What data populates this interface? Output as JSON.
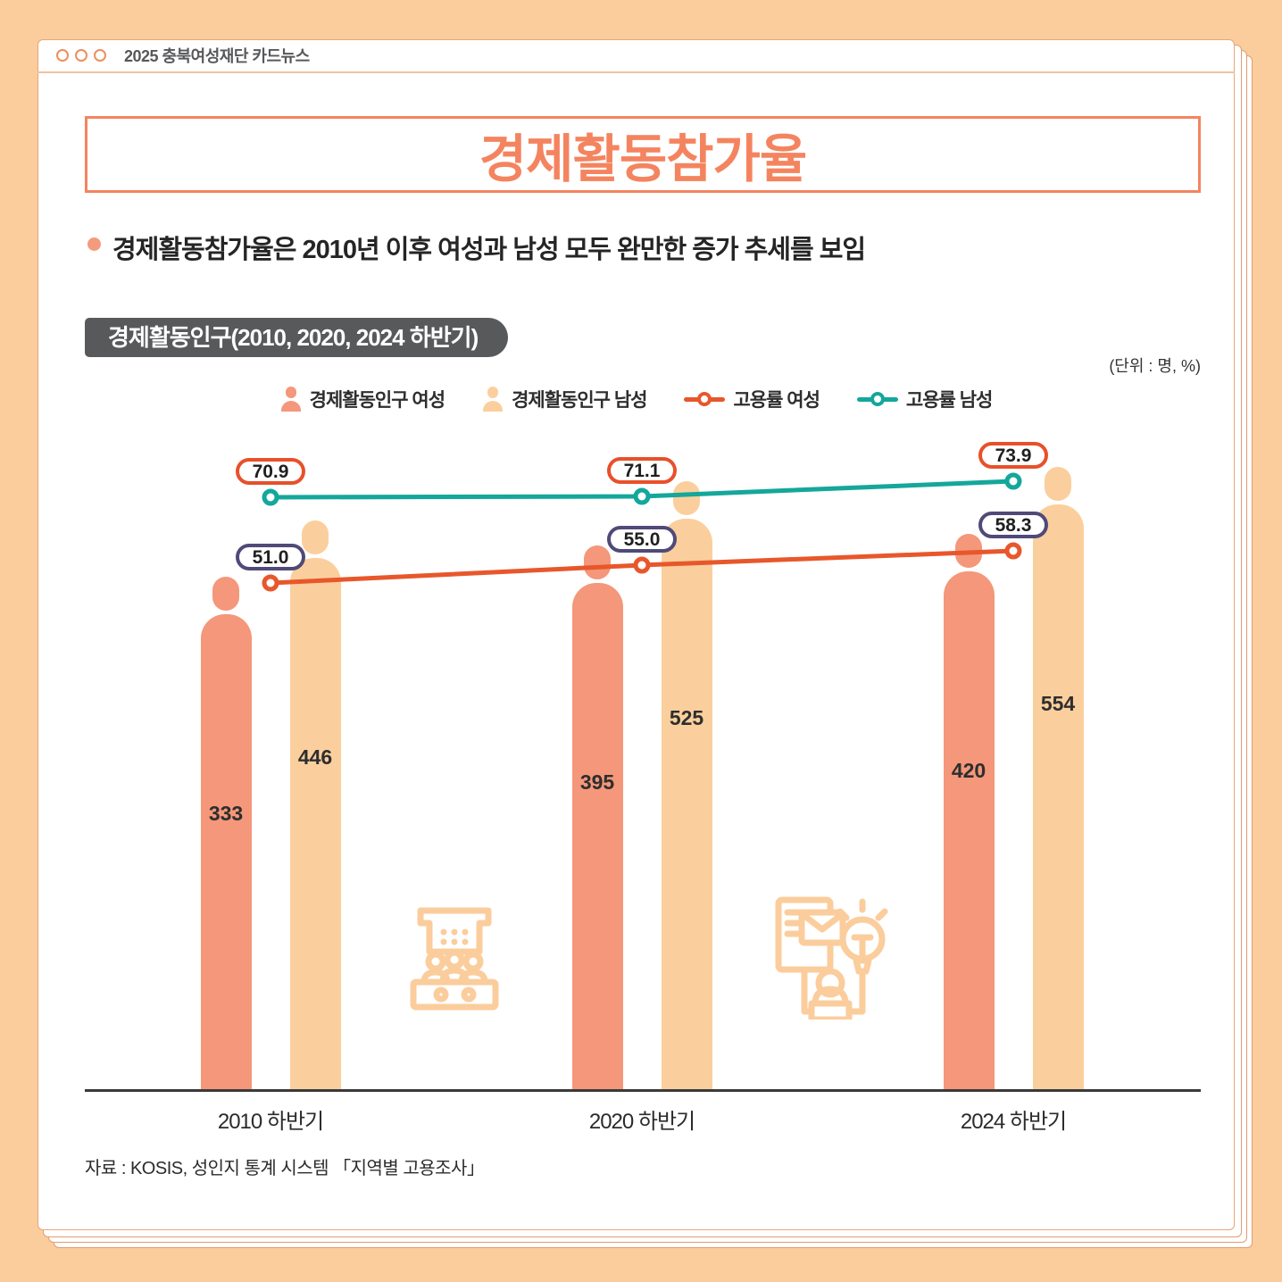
{
  "window": {
    "header_title": "2025 충북여성재단 카드뉴스"
  },
  "title_box": {
    "text": "경제활동참가율"
  },
  "summary": {
    "text": "경제활동참가율은 2010년 이후 여성과 남성 모두 완만한 증가 추세를 보임"
  },
  "chart_header": {
    "badge": "경제활동인구(2010, 2020, 2024 하반기)",
    "unit_note": "(단위 : 명, %)"
  },
  "source": {
    "text": "자료 : KOSIS, 성인지 통계 시스템 「지역별 고용조사」"
  },
  "colors": {
    "background_peach": "#FBCD9C",
    "card_white": "#FFFFFF",
    "card_border": "#E8A678",
    "title_coral": "#F4845F",
    "badge_gray": "#58595B",
    "female_bar": "#F4977A",
    "male_bar": "#FBCF9D",
    "female_rate_line": "#E8572B",
    "male_rate_line": "#14A79B",
    "female_rate_label_border": "#4F4A78",
    "male_rate_label_border": "#E8502A",
    "axis": "#3A3A3A"
  },
  "chart_data": {
    "type": "bar",
    "subtype": "pictogram person bars with employment-rate lines",
    "title": "경제활동인구(2010, 2020, 2024 하반기)",
    "unit_note": "(단위 : 명, %)",
    "categories": [
      "2010 하반기",
      "2020 하반기",
      "2024 하반기"
    ],
    "series": [
      {
        "name": "경제활동인구 여성",
        "type": "bar",
        "values": [
          333,
          395,
          420
        ],
        "color": "#F4977A"
      },
      {
        "name": "경제활동인구 남성",
        "type": "bar",
        "values": [
          446,
          525,
          554
        ],
        "color": "#FBCF9D"
      },
      {
        "name": "고용률 여성",
        "type": "line",
        "values": [
          51.0,
          55.0,
          58.3
        ],
        "color": "#E8572B",
        "label_border_color": "#4F4A78"
      },
      {
        "name": "고용률 남성",
        "type": "line",
        "values": [
          70.9,
          71.1,
          73.9
        ],
        "color": "#14A79B",
        "label_border_color": "#E8502A"
      }
    ],
    "legend_position": "top-center",
    "grid": false,
    "source": "자료 : KOSIS, 성인지 통계 시스템 「지역별 고용조사」"
  }
}
